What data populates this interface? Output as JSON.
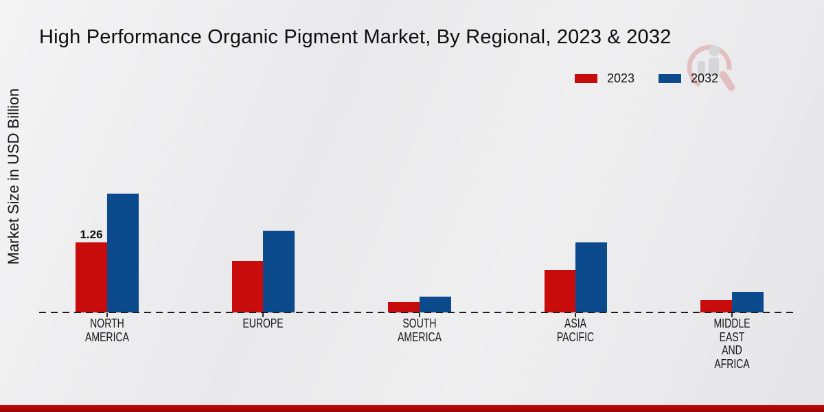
{
  "title": "High Performance Organic Pigment Market, By Regional, 2023 & 2032",
  "y_axis_label": "Market Size in USD Billion",
  "legend": {
    "items": [
      {
        "label": "2023",
        "color": "#c80b0b"
      },
      {
        "label": "2032",
        "color": "#0b4a8c"
      }
    ]
  },
  "watermark": "market-research-future-logo",
  "colors": {
    "accent_red": "#c80b0b",
    "accent_blue": "#0b4a8c",
    "bottom_strip": "#b10606",
    "background": "#ebebed",
    "axis": "#1b1b1b"
  },
  "chart_data": {
    "type": "bar",
    "title": "High Performance Organic Pigment Market, By Regional, 2023 & 2032",
    "ylabel": "Market Size in USD Billion",
    "unit": "USD Billion",
    "categories": [
      "NORTH AMERICA",
      "EUROPE",
      "SOUTH AMERICA",
      "ASIA PACIFIC",
      "MIDDLE EAST AND AFRICA"
    ],
    "category_label_lines": [
      [
        "NORTH",
        "AMERICA"
      ],
      [
        "EUROPE"
      ],
      [
        "SOUTH",
        "AMERICA"
      ],
      [
        "ASIA",
        "PACIFIC"
      ],
      [
        "MIDDLE",
        "EAST",
        "AND",
        "AFRICA"
      ]
    ],
    "series": [
      {
        "name": "2023",
        "color": "#c80b0b",
        "values": [
          1.26,
          0.93,
          0.19,
          0.77,
          0.22
        ]
      },
      {
        "name": "2032",
        "color": "#0b4a8c",
        "values": [
          2.14,
          1.47,
          0.29,
          1.26,
          0.37
        ]
      }
    ],
    "data_labels": [
      {
        "category_index": 0,
        "series_name": "2023",
        "text": "1.26"
      }
    ],
    "ylim": [
      0,
      2.5
    ],
    "grid": false,
    "legend_position": "top-right",
    "axis_style": "dashed-baseline"
  }
}
